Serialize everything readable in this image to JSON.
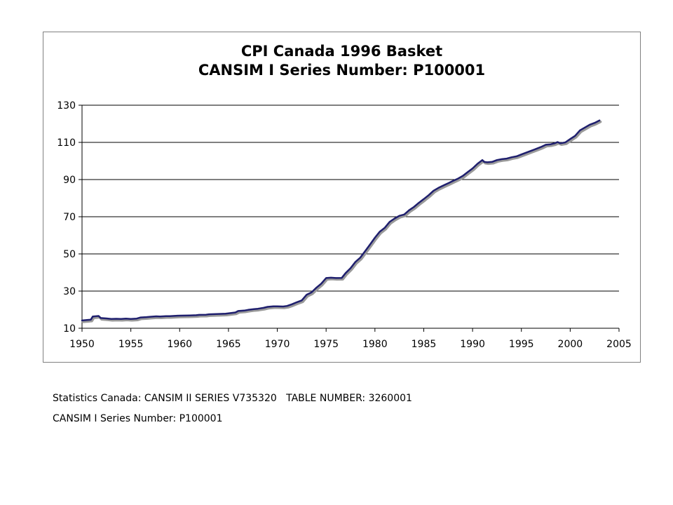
{
  "chart_data": {
    "type": "line",
    "title": "CPI Canada 1996 Basket",
    "subtitle": "CANSIM I Series Number: P100001",
    "xlabel": "",
    "ylabel": "",
    "xlim": [
      1950,
      2005
    ],
    "ylim": [
      10,
      130
    ],
    "x_ticks": [
      1950,
      1955,
      1960,
      1965,
      1970,
      1975,
      1980,
      1985,
      1990,
      1995,
      2000,
      2005
    ],
    "y_ticks": [
      10,
      30,
      50,
      70,
      90,
      110,
      130
    ],
    "grid": "horizontal",
    "legend": "none",
    "colors": {
      "line": "#1f1f6e",
      "shadow": "#9a9a9a",
      "grid": "#000000"
    },
    "series": [
      {
        "name": "",
        "x": [
          1950.0,
          1950.9,
          1951.1,
          1951.7,
          1951.9,
          1952.5,
          1953.0,
          1953.5,
          1954.0,
          1954.5,
          1955.0,
          1955.6,
          1956.0,
          1956.6,
          1957.0,
          1957.6,
          1958.0,
          1958.6,
          1959.0,
          1959.6,
          1960.0,
          1961.0,
          1961.7,
          1962.0,
          1962.7,
          1963.0,
          1964.0,
          1964.7,
          1965.0,
          1965.7,
          1966.0,
          1966.6,
          1967.0,
          1967.6,
          1968.0,
          1968.6,
          1969.0,
          1969.6,
          1970.0,
          1970.6,
          1971.0,
          1971.5,
          1972.0,
          1972.5,
          1973.0,
          1973.5,
          1974.0,
          1974.5,
          1975.0,
          1975.5,
          1976.0,
          1976.6,
          1977.0,
          1977.5,
          1978.0,
          1978.5,
          1979.0,
          1979.5,
          1980.0,
          1980.5,
          1981.0,
          1981.5,
          1982.0,
          1982.5,
          1983.0,
          1983.5,
          1984.0,
          1984.5,
          1985.0,
          1985.5,
          1986.0,
          1986.5,
          1987.0,
          1987.5,
          1988.0,
          1988.5,
          1989.0,
          1989.5,
          1990.0,
          1990.5,
          1991.0,
          1991.2,
          1991.5,
          1992.0,
          1992.5,
          1993.0,
          1993.5,
          1994.0,
          1994.5,
          1995.0,
          1995.5,
          1996.0,
          1996.5,
          1997.0,
          1997.5,
          1998.0,
          1998.4,
          1998.7,
          1999.0,
          1999.5,
          2000.0,
          2000.5,
          2001.0,
          2001.5,
          2002.0,
          2002.5,
          2003.0
        ],
        "values": [
          14.2,
          14.6,
          16.3,
          16.6,
          15.5,
          15.3,
          15.0,
          15.1,
          15.0,
          15.2,
          15.0,
          15.2,
          15.8,
          16.0,
          16.2,
          16.4,
          16.3,
          16.5,
          16.5,
          16.7,
          16.8,
          16.9,
          17.0,
          17.2,
          17.3,
          17.5,
          17.7,
          17.8,
          18.0,
          18.5,
          19.3,
          19.5,
          19.9,
          20.3,
          20.5,
          21.0,
          21.5,
          21.8,
          21.8,
          21.7,
          22.0,
          22.9,
          24.0,
          25.0,
          28.0,
          29.3,
          31.8,
          34.0,
          37.0,
          37.2,
          37.0,
          37.1,
          39.7,
          42.3,
          45.7,
          48.0,
          51.5,
          55.1,
          58.7,
          62.0,
          64.0,
          67.2,
          69.0,
          70.5,
          71.2,
          73.5,
          75.3,
          77.5,
          79.5,
          81.6,
          84.0,
          85.5,
          86.8,
          88.0,
          89.3,
          90.5,
          92.0,
          94.0,
          96.0,
          98.5,
          100.5,
          99.5,
          99.3,
          99.5,
          100.5,
          101.0,
          101.3,
          102.0,
          102.5,
          103.5,
          104.5,
          105.5,
          106.5,
          107.5,
          108.7,
          109.0,
          109.5,
          110.2,
          109.5,
          110.0,
          111.8,
          113.5,
          116.5,
          118.0,
          119.5,
          120.5,
          121.8
        ]
      }
    ]
  },
  "footnotes": {
    "line1": "Statistics Canada: CANSIM II SERIES V735320   TABLE NUMBER: 3260001",
    "line2": "CANSIM I Series Number: P100001"
  }
}
